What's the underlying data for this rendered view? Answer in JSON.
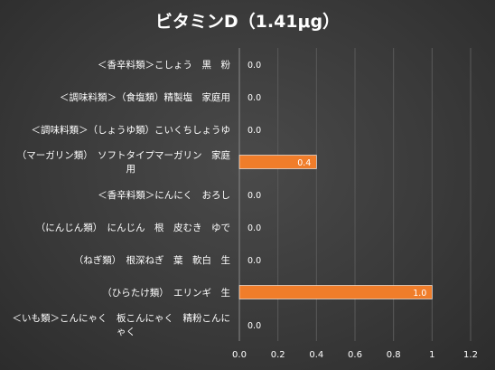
{
  "chart_data": {
    "type": "bar",
    "orientation": "horizontal",
    "title": "ビタミンD（1.41μg）",
    "categories": [
      "＜香辛料類＞こしょう　黒　粉",
      "＜調味料類＞（食塩類）精製塩　家庭用",
      "＜調味料類＞（しょうゆ類）こいくちしょうゆ",
      "（マーガリン類）　ソフトタイプマーガリン　家庭用",
      "＜香辛料類＞にんにく　おろし",
      "（にんじん類）　にんじん　根　皮むき　ゆで",
      "（ねぎ類）　根深ねぎ　葉　軟白　生",
      "（ひらたけ類）　エリンギ　生",
      "＜いも類＞こんにゃく　板こんにゃく　精粉こんにゃく"
    ],
    "values": [
      0.0,
      0.0,
      0.0,
      0.4,
      0.0,
      0.0,
      0.0,
      1.0,
      0.0
    ],
    "value_labels": [
      "0.0",
      "0.0",
      "0.0",
      "0.4",
      "0.0",
      "0.0",
      "0.0",
      "1.0",
      "0.0"
    ],
    "xlim": [
      0,
      1.2
    ],
    "xticks": [
      "0.0",
      "0.2",
      "0.4",
      "0.6",
      "0.8",
      "1",
      "1.2"
    ],
    "xtick_values": [
      0,
      0.2,
      0.4,
      0.6,
      0.8,
      1.0,
      1.2
    ],
    "grid": true,
    "legend": "none",
    "bar_color": "#F07D2A"
  }
}
